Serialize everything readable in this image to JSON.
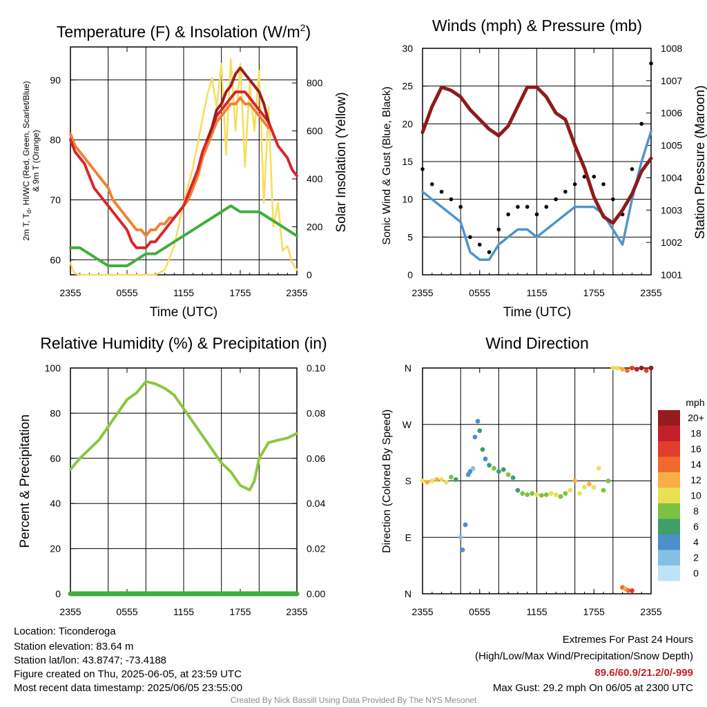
{
  "chart_data": [
    {
      "type": "line",
      "title_main": "Temperature (F) & Insolation (W/m",
      "title_sup": "2",
      "title_end": ")",
      "xlabel": "Time (UTC)",
      "ylabel_left_line1": "2m T, T",
      "ylabel_left_sub": "d",
      "ylabel_left_line1_end": ", HI/WC (Red, Green, Scarlet/Blue)",
      "ylabel_left_line2": "& 9m T (Orange)",
      "ylabel_right": "Solar Insolation (Yellow)",
      "x_ticks": [
        "2355",
        "0555",
        "1155",
        "1755",
        "2355"
      ],
      "x_range_hours": [
        0,
        24
      ],
      "ylim_left": [
        57.5,
        95.5
      ],
      "y_ticks_left": [
        "60",
        "70",
        "80",
        "90"
      ],
      "ylim_right": [
        0,
        950
      ],
      "y_ticks_right": [
        "0",
        "200",
        "400",
        "600",
        "800"
      ],
      "colors": {
        "temperature": "#d8262b",
        "dewpoint": "#3fae3c",
        "heat_index": "#a31a1a",
        "temp_9m": "#f08332",
        "insolation": "#f6dd5a"
      },
      "series": [
        {
          "key": "temperature",
          "x": [
            0,
            0.5,
            1,
            1.5,
            2,
            2.5,
            3,
            3.5,
            4,
            4.5,
            5,
            5.5,
            6,
            6.5,
            7,
            7.5,
            8,
            8.5,
            9,
            9.5,
            10,
            10.5,
            11,
            11.5,
            12,
            12.5,
            13,
            13.5,
            14,
            14.5,
            15,
            15.5,
            16,
            16.5,
            17,
            17.5,
            18,
            18.5,
            19,
            19.5,
            20,
            20.5,
            21,
            21.5,
            22,
            22.5,
            23,
            23.5,
            24
          ],
          "y": [
            80,
            78,
            77,
            76,
            74,
            72,
            71,
            70,
            69,
            68,
            67,
            66,
            65,
            63,
            62,
            62,
            62,
            63,
            63,
            64,
            65,
            66,
            67,
            68,
            69,
            71,
            73,
            75,
            78,
            80,
            82,
            84,
            85,
            86,
            87,
            88,
            88,
            88,
            87,
            86,
            85,
            84,
            83,
            81,
            79,
            78,
            77,
            75,
            74
          ]
        },
        {
          "key": "temp_9m",
          "x": [
            0,
            0.5,
            1,
            1.5,
            2,
            2.5,
            3,
            3.5,
            4,
            4.5,
            5,
            5.5,
            6,
            6.5,
            7,
            7.5,
            8,
            8.5,
            9,
            9.5,
            10,
            10.5,
            11,
            11.5,
            12,
            12.5,
            13,
            13.5,
            14,
            14.5,
            15,
            15.5,
            16,
            16.5,
            17,
            17.5,
            18,
            18.5,
            19,
            19.5,
            20,
            20.5,
            21
          ],
          "y": [
            81,
            79,
            78,
            77,
            76,
            75,
            74,
            73,
            72,
            70,
            69,
            68,
            67,
            66,
            65,
            65,
            64,
            65,
            65,
            66,
            66,
            67,
            67,
            68,
            69,
            70,
            72,
            74,
            77,
            79,
            81,
            83,
            84,
            85,
            86,
            86,
            87,
            86,
            86,
            85,
            84,
            83,
            82
          ]
        },
        {
          "key": "heat_index",
          "x": [
            14.5,
            15,
            15.5,
            16,
            16.5,
            17,
            17.5,
            18,
            18.5,
            19,
            19.5,
            20,
            20.5,
            21
          ],
          "y": [
            80,
            82,
            85,
            86,
            88,
            89,
            91,
            92,
            91,
            90,
            89,
            88,
            86,
            83
          ]
        },
        {
          "key": "dewpoint",
          "x": [
            0,
            1,
            2,
            3,
            4,
            5,
            6,
            7,
            8,
            9,
            10,
            11,
            12,
            13,
            14,
            15,
            16,
            17,
            18,
            19,
            20,
            21,
            22,
            23,
            24
          ],
          "y": [
            62,
            62,
            61,
            60,
            59,
            59,
            59,
            60,
            61,
            61,
            62,
            63,
            64,
            65,
            66,
            67,
            68,
            69,
            68,
            68,
            68,
            67,
            66,
            65,
            64
          ]
        },
        {
          "key": "insolation",
          "x": [
            0,
            0.3,
            0.5,
            1,
            3,
            5,
            8,
            9,
            10,
            11,
            12,
            13,
            14,
            14.5,
            15,
            15.5,
            16,
            16.5,
            17,
            17.5,
            18,
            18.5,
            19,
            19.5,
            20,
            20.5,
            21,
            21.5,
            22,
            22.5,
            23,
            23.5,
            24
          ],
          "y": [
            50,
            15,
            5,
            0,
            0,
            0,
            0,
            0,
            20,
            120,
            300,
            450,
            650,
            750,
            820,
            700,
            880,
            500,
            900,
            600,
            880,
            450,
            800,
            600,
            850,
            300,
            700,
            200,
            300,
            100,
            120,
            50,
            20
          ]
        }
      ]
    },
    {
      "type": "line",
      "title": "Winds (mph) & Pressure (mb)",
      "xlabel": "Time (UTC)",
      "ylabel_left": "Sonic Wind & Gust (Blue, Black)",
      "ylabel_right": "Station Pressure (Maroon)",
      "x_ticks": [
        "2355",
        "0555",
        "1155",
        "1755",
        "2355"
      ],
      "x_range_hours": [
        0,
        24
      ],
      "ylim_left": [
        0,
        30
      ],
      "y_ticks_left": [
        "0",
        "5",
        "10",
        "15",
        "20",
        "25",
        "30"
      ],
      "ylim_right": [
        1001,
        1008
      ],
      "y_ticks_right": [
        "1001",
        "1002",
        "1003",
        "1004",
        "1005",
        "1006",
        "1007",
        "1008"
      ],
      "colors": {
        "wind": "#4f93d0",
        "gust": "#000000",
        "pressure": "#8e1b1b"
      },
      "series": [
        {
          "key": "pressure",
          "x": [
            0,
            1,
            2,
            3,
            4,
            5,
            6,
            7,
            8,
            9,
            10,
            11,
            12,
            13,
            14,
            15,
            16,
            17,
            18,
            19,
            20,
            21,
            22,
            23,
            24
          ],
          "y": [
            1005.4,
            1006.2,
            1006.8,
            1006.7,
            1006.5,
            1006.1,
            1005.8,
            1005.5,
            1005.3,
            1005.6,
            1006.2,
            1006.8,
            1006.8,
            1006.5,
            1006.0,
            1005.8,
            1005.0,
            1004.3,
            1003.4,
            1002.8,
            1002.6,
            1003.0,
            1003.5,
            1004.2,
            1004.6
          ]
        },
        {
          "key": "wind",
          "x": [
            0,
            1,
            2,
            3,
            4,
            5,
            6,
            7,
            8,
            9,
            10,
            11,
            12,
            13,
            14,
            15,
            16,
            17,
            18,
            19,
            20,
            21,
            22,
            23,
            24
          ],
          "y": [
            11,
            10,
            9,
            8,
            7,
            3,
            2,
            2,
            4,
            5,
            6,
            6,
            5,
            6,
            7,
            8,
            9,
            9,
            9,
            8,
            6,
            4,
            10,
            15,
            19
          ]
        },
        {
          "key": "gust",
          "x": [
            0,
            1,
            2,
            3,
            4,
            5,
            6,
            7,
            8,
            9,
            10,
            11,
            12,
            13,
            14,
            15,
            16,
            17,
            18,
            19,
            20,
            21,
            22,
            23,
            24
          ],
          "y": [
            14,
            12,
            11,
            10,
            9,
            5,
            4,
            3,
            6,
            8,
            9,
            9,
            8,
            9,
            10,
            11,
            12,
            13,
            13,
            12,
            10,
            8,
            14,
            20,
            28
          ]
        }
      ]
    },
    {
      "type": "line",
      "title": "Relative Humidity (%) & Precipitation (in)",
      "xlabel": "",
      "ylabel_left": "Percent & Precipitation",
      "x_ticks": [
        "2355",
        "0555",
        "1155",
        "1755",
        "2355"
      ],
      "x_range_hours": [
        0,
        24
      ],
      "ylim_left": [
        0,
        100
      ],
      "y_ticks_left": [
        "0",
        "20",
        "40",
        "60",
        "80",
        "100"
      ],
      "ylim_right": [
        0,
        0.1
      ],
      "y_ticks_right": [
        "0.00",
        "0.02",
        "0.04",
        "0.06",
        "0.08",
        "0.10"
      ],
      "colors": {
        "humidity": "#8cc63f",
        "precip": "#3fae3c"
      },
      "series": [
        {
          "key": "humidity",
          "x": [
            0,
            1,
            2,
            3,
            4,
            5,
            6,
            7,
            8,
            9,
            10,
            11,
            12,
            13,
            14,
            15,
            16,
            17,
            17.5,
            18,
            18.5,
            19,
            19.5,
            20,
            21,
            22,
            23,
            24
          ],
          "y": [
            55,
            60,
            64,
            68,
            74,
            80,
            86,
            89,
            94,
            93,
            91,
            88,
            82,
            76,
            70,
            64,
            58,
            54,
            51,
            48,
            47,
            46,
            50,
            60,
            67,
            68,
            69,
            71
          ]
        },
        {
          "key": "precip",
          "x": [
            0,
            24
          ],
          "y": [
            0,
            0
          ]
        }
      ]
    },
    {
      "type": "scatter",
      "title": "Wind Direction",
      "ylabel_left": "Direction (Colored By Speed)",
      "x_ticks": [
        "2355",
        "0555",
        "1155",
        "1755",
        "2355"
      ],
      "x_range_hours": [
        0,
        24
      ],
      "direction_ticks": [
        "N",
        "E",
        "S",
        "W",
        "N"
      ],
      "ylim_degrees": [
        0,
        360
      ],
      "legend_title": "mph",
      "legend_labels": [
        "0",
        "2",
        "4",
        "6",
        "8",
        "10",
        "12",
        "14",
        "16",
        "18",
        "20+"
      ],
      "legend_colors": [
        "#bfe3f6",
        "#84bfe6",
        "#4b8fcc",
        "#3f9e69",
        "#7dc143",
        "#e8e154",
        "#f9ae45",
        "#ef6a2c",
        "#e03d2c",
        "#c2202a",
        "#951b1e"
      ],
      "points": {
        "x": [
          0,
          0.5,
          1,
          1.5,
          2,
          2.5,
          3,
          3.5,
          4,
          4.2,
          4.5,
          4.8,
          5,
          5.3,
          5.5,
          5.8,
          6,
          6.3,
          6.6,
          7,
          7.5,
          8,
          8.5,
          9,
          9.5,
          10,
          10.5,
          11,
          11.5,
          12,
          12.5,
          13,
          13.5,
          14,
          14.5,
          15,
          15.5,
          16,
          16.5,
          17,
          17.5,
          18,
          18.5,
          19,
          19.5,
          20,
          20.5,
          21,
          21.5,
          22,
          22.5,
          23,
          23.5,
          24,
          21,
          21.3,
          21.6,
          22
        ],
        "deg": [
          180,
          178,
          180,
          182,
          182,
          178,
          186,
          182,
          90,
          70,
          110,
          190,
          195,
          200,
          250,
          275,
          260,
          230,
          215,
          205,
          200,
          195,
          198,
          190,
          185,
          165,
          160,
          158,
          160,
          158,
          157,
          158,
          160,
          158,
          155,
          160,
          165,
          180,
          160,
          170,
          175,
          170,
          200,
          165,
          180,
          360,
          360,
          358,
          356,
          360,
          358,
          360,
          356,
          360,
          10,
          8,
          5,
          5
        ],
        "speed": [
          10,
          11,
          10,
          12,
          9,
          10,
          8,
          6,
          2,
          4,
          3,
          4,
          3,
          2,
          3,
          4,
          5,
          5,
          4,
          6,
          7,
          6,
          6,
          8,
          6,
          5,
          7,
          8,
          7,
          9,
          8,
          7,
          9,
          10,
          8,
          7,
          9,
          11,
          10,
          10,
          12,
          10,
          9,
          8,
          8,
          9,
          10,
          12,
          14,
          16,
          18,
          20,
          16,
          20,
          14,
          12,
          13,
          16
        ]
      }
    }
  ],
  "footer": {
    "location": "Location: Ticonderoga",
    "elevation": "Station elevation: 83.64 m",
    "latlon": "Station lat/lon: 43.8747; -73.4188",
    "created": "Figure created on Thu, 2025-06-05, at 23:59 UTC",
    "recent": "Most recent data timestamp: 2025/06/05 23:55:00",
    "extremes_title": "Extremes For Past 24 Hours",
    "extremes_sub": "(High/Low/Max Wind/Precipitation/Snow Depth)",
    "extremes_values": "89.6/60.9/21.2/0/-999",
    "extremes_color": "#c0202a",
    "max_gust": "Max Gust: 29.2 mph On 06/05 at 2300 UTC",
    "credit": "Created By Nick Bassill Using Data Provided By The NYS Mesonet"
  }
}
